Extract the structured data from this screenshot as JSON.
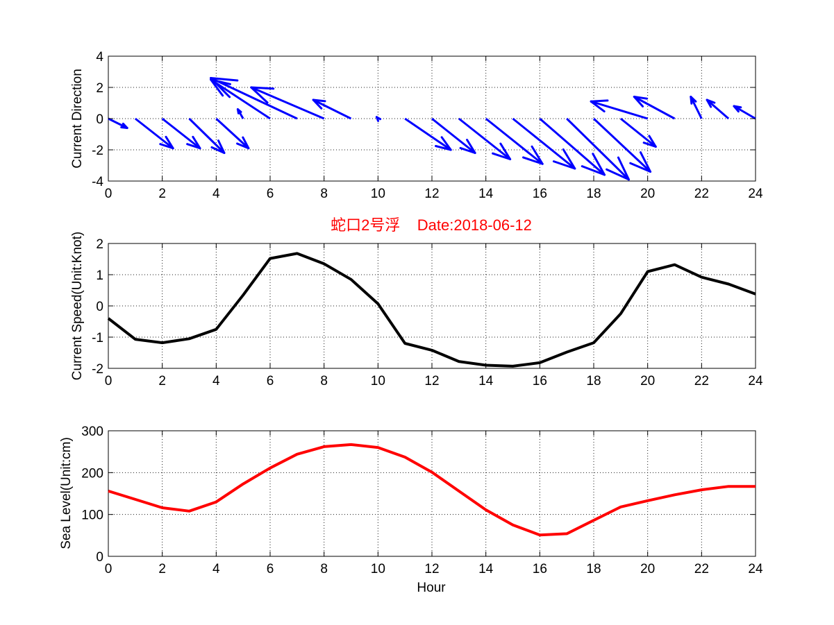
{
  "colors": {
    "direction": "#0000ff",
    "speed": "#000000",
    "sea_level": "#ff0000",
    "title": "#ff0000"
  },
  "chart_data": [
    {
      "type": "quiver",
      "title": "",
      "xlabel": "",
      "ylabel": "Current Direction",
      "xlim": [
        0,
        24
      ],
      "ylim": [
        -4,
        4
      ],
      "xticks": [
        0,
        2,
        4,
        6,
        8,
        10,
        12,
        14,
        16,
        18,
        20,
        22,
        24
      ],
      "yticks": [
        -4,
        -2,
        0,
        2,
        4
      ],
      "grid": true,
      "series": [
        {
          "x": [
            0,
            1,
            2,
            3,
            4,
            5,
            6,
            7,
            8,
            9,
            10,
            11,
            12,
            13,
            14,
            15,
            16,
            17,
            18,
            19,
            20,
            21,
            22,
            23,
            24
          ],
          "u": [
            0.7,
            1.4,
            1.4,
            1.3,
            1.2,
            -0.2,
            -2.2,
            -3.2,
            -2.7,
            -1.4,
            -0.05,
            1.7,
            1.6,
            1.9,
            2.1,
            2.3,
            2.4,
            2.3,
            2.1,
            1.3,
            -2.1,
            -1.5,
            -0.4,
            -0.8,
            -0.8
          ],
          "v": [
            -0.6,
            -1.9,
            -1.9,
            -2.2,
            -1.9,
            0.6,
            2.5,
            2.6,
            2.0,
            1.2,
            0.1,
            -2.0,
            -2.2,
            -2.6,
            -2.9,
            -3.2,
            -3.6,
            -3.9,
            -3.4,
            -1.8,
            1.1,
            1.4,
            1.4,
            1.2,
            0.8
          ]
        }
      ]
    },
    {
      "type": "line",
      "title": "蛇口2号浮    Date:2018-06-12",
      "xlabel": "",
      "ylabel": "Current Speed(Unit:Knot)",
      "xlim": [
        0,
        24
      ],
      "ylim": [
        -2,
        2
      ],
      "xticks": [
        0,
        2,
        4,
        6,
        8,
        10,
        12,
        14,
        16,
        18,
        20,
        22,
        24
      ],
      "yticks": [
        -2,
        -1,
        0,
        1,
        2
      ],
      "grid": true,
      "series": [
        {
          "x": [
            0,
            1,
            2,
            3,
            4,
            5,
            6,
            7,
            8,
            9,
            10,
            11,
            12,
            13,
            14,
            15,
            16,
            17,
            18,
            19,
            20,
            21,
            22,
            23,
            24
          ],
          "y": [
            -0.4,
            -1.07,
            -1.18,
            -1.05,
            -0.75,
            0.35,
            1.52,
            1.68,
            1.35,
            0.85,
            0.07,
            -1.2,
            -1.42,
            -1.78,
            -1.9,
            -1.93,
            -1.82,
            -1.48,
            -1.18,
            -0.25,
            1.1,
            1.32,
            0.92,
            0.7,
            0.38
          ]
        }
      ]
    },
    {
      "type": "line",
      "title": "",
      "xlabel": "Hour",
      "ylabel": "Sea Level(Unit:cm)",
      "xlim": [
        0,
        24
      ],
      "ylim": [
        0,
        300
      ],
      "xticks": [
        0,
        2,
        4,
        6,
        8,
        10,
        12,
        14,
        16,
        18,
        20,
        22,
        24
      ],
      "yticks": [
        0,
        100,
        200,
        300
      ],
      "grid": true,
      "series": [
        {
          "x": [
            0,
            1,
            2,
            3,
            4,
            5,
            6,
            7,
            8,
            9,
            10,
            11,
            12,
            13,
            14,
            15,
            16,
            17,
            18,
            19,
            20,
            21,
            22,
            23,
            24
          ],
          "y": [
            156,
            136,
            116,
            108,
            130,
            173,
            211,
            244,
            262,
            267,
            260,
            237,
            201,
            156,
            111,
            75,
            51,
            54,
            86,
            118,
            133,
            147,
            159,
            167,
            167
          ]
        }
      ]
    }
  ]
}
